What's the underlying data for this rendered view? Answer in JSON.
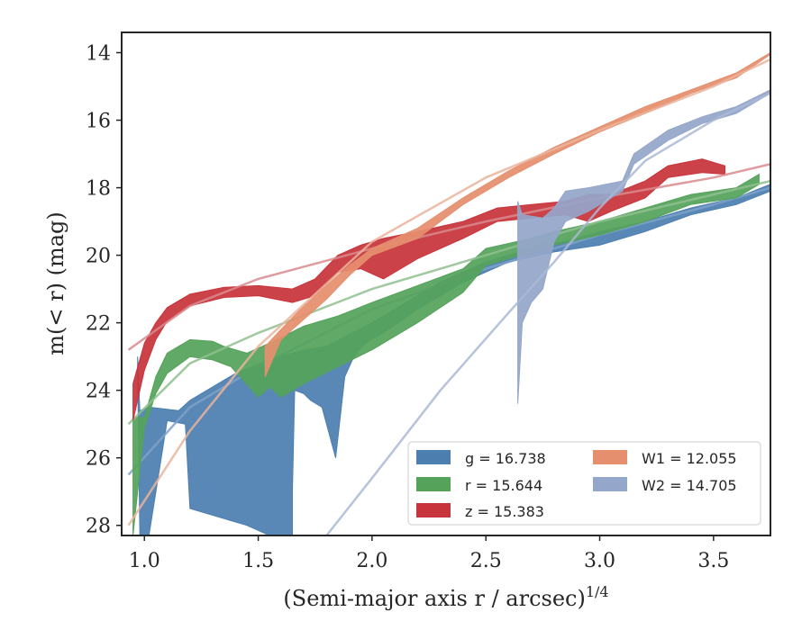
{
  "chart_data": {
    "type": "area",
    "xlabel": "(Semi-major axis r / arcsec)",
    "xlabel_superscript": "1/4",
    "ylabel": "m(< r) (mag)",
    "xlim": [
      0.9,
      3.75
    ],
    "ylim": [
      28.3,
      13.4
    ],
    "y_inverted": true,
    "grid": false,
    "legend_position": "lower-right",
    "legend_columns": 2,
    "x_ticks": [
      1.0,
      1.5,
      2.0,
      2.5,
      3.0,
      3.5
    ],
    "x_tick_labels": [
      "1.0",
      "1.5",
      "2.0",
      "2.5",
      "3.0",
      "3.5"
    ],
    "y_ticks": [
      14,
      16,
      18,
      20,
      22,
      24,
      26,
      28
    ],
    "y_tick_labels": [
      "14",
      "16",
      "18",
      "20",
      "22",
      "24",
      "26",
      "28"
    ],
    "series": [
      {
        "name": "g = 16.738",
        "legend_label": "g = 16.738",
        "color": "#4c7fb0",
        "fit_color": "#7fa2c8",
        "band_upper": [
          [
            0.97,
            23.0
          ],
          [
            0.98,
            24.6
          ],
          [
            1.02,
            24.5
          ],
          [
            1.15,
            24.6
          ],
          [
            1.2,
            24.3
          ],
          [
            1.4,
            23.5
          ],
          [
            1.55,
            23.1
          ],
          [
            1.7,
            22.8
          ],
          [
            1.8,
            22.7
          ],
          [
            2.0,
            22.0
          ],
          [
            2.1,
            21.6
          ],
          [
            2.3,
            20.8
          ],
          [
            2.5,
            20.2
          ],
          [
            2.7,
            19.8
          ],
          [
            2.9,
            19.5
          ],
          [
            3.0,
            19.3
          ],
          [
            3.2,
            19.0
          ],
          [
            3.4,
            18.6
          ],
          [
            3.6,
            18.3
          ],
          [
            3.75,
            17.9
          ]
        ],
        "band_lower": [
          [
            0.97,
            23.5
          ],
          [
            0.98,
            28.3
          ],
          [
            1.02,
            28.3
          ],
          [
            1.1,
            24.9
          ],
          [
            1.18,
            25.0
          ],
          [
            1.2,
            27.5
          ],
          [
            1.45,
            28.0
          ],
          [
            1.55,
            28.3
          ],
          [
            1.65,
            28.3
          ],
          [
            1.65,
            27.0
          ],
          [
            1.66,
            24.0
          ],
          [
            1.7,
            24.1
          ],
          [
            1.73,
            24.3
          ],
          [
            1.78,
            24.5
          ],
          [
            1.8,
            25.0
          ],
          [
            1.84,
            26.0
          ],
          [
            1.88,
            23.6
          ],
          [
            1.92,
            23.0
          ],
          [
            1.97,
            22.6
          ],
          [
            2.05,
            22.3
          ],
          [
            2.2,
            21.6
          ],
          [
            2.4,
            20.8
          ],
          [
            2.6,
            20.2
          ],
          [
            2.8,
            19.9
          ],
          [
            3.0,
            19.7
          ],
          [
            3.2,
            19.3
          ],
          [
            3.4,
            18.8
          ],
          [
            3.6,
            18.5
          ],
          [
            3.75,
            18.1
          ]
        ],
        "fit": [
          [
            0.93,
            26.5
          ],
          [
            1.2,
            24.5
          ],
          [
            1.5,
            23.3
          ],
          [
            2.0,
            21.6
          ],
          [
            2.5,
            20.4
          ],
          [
            3.0,
            19.4
          ],
          [
            3.5,
            18.5
          ],
          [
            3.75,
            18.0
          ]
        ]
      },
      {
        "name": "r = 15.644",
        "legend_label": "r = 15.644",
        "color": "#55a25b",
        "fit_color": "#8fc08f",
        "band_upper": [
          [
            0.95,
            24.8
          ],
          [
            1.0,
            24.8
          ],
          [
            1.05,
            23.6
          ],
          [
            1.1,
            22.9
          ],
          [
            1.2,
            22.5
          ],
          [
            1.3,
            22.55
          ],
          [
            1.35,
            22.7
          ],
          [
            1.45,
            22.9
          ],
          [
            1.55,
            22.6
          ],
          [
            1.7,
            22.1
          ],
          [
            1.85,
            21.8
          ],
          [
            2.0,
            21.4
          ],
          [
            2.2,
            20.9
          ],
          [
            2.4,
            20.4
          ],
          [
            2.5,
            19.8
          ],
          [
            2.7,
            19.5
          ],
          [
            2.8,
            19.3
          ],
          [
            3.0,
            19.0
          ],
          [
            3.2,
            18.6
          ],
          [
            3.4,
            18.2
          ],
          [
            3.6,
            18.0
          ],
          [
            3.7,
            17.6
          ]
        ],
        "band_lower": [
          [
            0.95,
            28.3
          ],
          [
            1.0,
            25.1
          ],
          [
            1.05,
            24.1
          ],
          [
            1.1,
            23.5
          ],
          [
            1.2,
            23.0
          ],
          [
            1.3,
            23.1
          ],
          [
            1.38,
            23.3
          ],
          [
            1.5,
            24.2
          ],
          [
            1.55,
            23.9
          ],
          [
            1.6,
            24.2
          ],
          [
            1.7,
            23.8
          ],
          [
            1.85,
            23.3
          ],
          [
            2.0,
            22.8
          ],
          [
            2.2,
            22.0
          ],
          [
            2.4,
            21.1
          ],
          [
            2.5,
            20.3
          ],
          [
            2.7,
            19.9
          ],
          [
            2.8,
            19.7
          ],
          [
            3.0,
            19.4
          ],
          [
            3.2,
            19.0
          ],
          [
            3.4,
            18.5
          ],
          [
            3.6,
            18.3
          ],
          [
            3.7,
            17.9
          ]
        ],
        "fit": [
          [
            0.93,
            25.0
          ],
          [
            1.2,
            23.2
          ],
          [
            1.5,
            22.3
          ],
          [
            2.0,
            21.0
          ],
          [
            2.5,
            20.0
          ],
          [
            3.0,
            19.0
          ],
          [
            3.5,
            18.2
          ],
          [
            3.75,
            17.8
          ]
        ]
      },
      {
        "name": "z = 15.383",
        "legend_label": "z = 15.383",
        "color": "#c8343b",
        "fit_color": "#d98a8d",
        "band_upper": [
          [
            0.95,
            23.8
          ],
          [
            1.0,
            22.6
          ],
          [
            1.05,
            22.0
          ],
          [
            1.1,
            21.55
          ],
          [
            1.2,
            21.15
          ],
          [
            1.35,
            20.95
          ],
          [
            1.5,
            20.9
          ],
          [
            1.65,
            21.0
          ],
          [
            1.75,
            20.7
          ],
          [
            1.85,
            20.0
          ],
          [
            1.95,
            19.7
          ],
          [
            2.05,
            19.5
          ],
          [
            2.2,
            19.3
          ],
          [
            2.4,
            19.0
          ],
          [
            2.55,
            18.6
          ],
          [
            2.7,
            18.5
          ],
          [
            2.85,
            18.4
          ],
          [
            2.95,
            18.2
          ],
          [
            3.05,
            18.2
          ],
          [
            3.2,
            17.8
          ],
          [
            3.3,
            17.35
          ],
          [
            3.45,
            17.15
          ],
          [
            3.55,
            17.35
          ]
        ],
        "band_lower": [
          [
            0.95,
            24.9
          ],
          [
            1.0,
            23.4
          ],
          [
            1.05,
            22.5
          ],
          [
            1.1,
            21.95
          ],
          [
            1.2,
            21.5
          ],
          [
            1.35,
            21.25
          ],
          [
            1.5,
            21.2
          ],
          [
            1.65,
            21.4
          ],
          [
            1.75,
            21.2
          ],
          [
            1.85,
            20.5
          ],
          [
            1.95,
            20.4
          ],
          [
            2.05,
            20.7
          ],
          [
            2.2,
            20.1
          ],
          [
            2.4,
            19.5
          ],
          [
            2.55,
            19.0
          ],
          [
            2.7,
            18.9
          ],
          [
            2.85,
            18.8
          ],
          [
            2.95,
            19.0
          ],
          [
            3.05,
            18.7
          ],
          [
            3.2,
            18.3
          ],
          [
            3.3,
            17.7
          ],
          [
            3.45,
            17.55
          ],
          [
            3.55,
            17.6
          ]
        ],
        "fit": [
          [
            0.93,
            22.8
          ],
          [
            1.2,
            21.5
          ],
          [
            1.5,
            20.7
          ],
          [
            2.0,
            19.8
          ],
          [
            2.5,
            19.0
          ],
          [
            3.0,
            18.3
          ],
          [
            3.5,
            17.7
          ],
          [
            3.75,
            17.3
          ]
        ]
      },
      {
        "name": "W1 = 12.055",
        "legend_label": "W1 = 12.055",
        "color": "#e58f6e",
        "fit_color": "#eab49b",
        "band_upper": [
          [
            1.53,
            22.7
          ],
          [
            1.6,
            22.2
          ],
          [
            1.7,
            21.5
          ],
          [
            1.8,
            20.9
          ],
          [
            1.9,
            20.3
          ],
          [
            2.0,
            19.8
          ],
          [
            2.2,
            19.2
          ],
          [
            2.4,
            18.3
          ],
          [
            2.6,
            17.5
          ],
          [
            2.8,
            16.8
          ],
          [
            3.0,
            16.2
          ],
          [
            3.2,
            15.6
          ],
          [
            3.4,
            15.1
          ],
          [
            3.6,
            14.6
          ],
          [
            3.75,
            14.0
          ]
        ],
        "band_lower": [
          [
            1.53,
            23.6
          ],
          [
            1.6,
            22.5
          ],
          [
            1.7,
            21.9
          ],
          [
            1.8,
            21.3
          ],
          [
            1.9,
            20.6
          ],
          [
            2.0,
            20.0
          ],
          [
            2.2,
            19.5
          ],
          [
            2.4,
            18.5
          ],
          [
            2.6,
            17.7
          ],
          [
            2.8,
            17.0
          ],
          [
            3.0,
            16.35
          ],
          [
            3.2,
            15.8
          ],
          [
            3.4,
            15.2
          ],
          [
            3.6,
            14.75
          ],
          [
            3.75,
            14.05
          ]
        ],
        "fit": [
          [
            0.93,
            28.0
          ],
          [
            1.2,
            25.2
          ],
          [
            1.5,
            22.7
          ],
          [
            2.0,
            19.6
          ],
          [
            2.5,
            17.7
          ],
          [
            3.0,
            16.3
          ],
          [
            3.5,
            15.0
          ],
          [
            3.75,
            14.2
          ]
        ]
      },
      {
        "name": "W2 = 14.705",
        "legend_label": "W2 = 14.705",
        "color": "#94a6c9",
        "fit_color": "#a9b8d5",
        "band_upper": [
          [
            2.64,
            18.4
          ],
          [
            2.66,
            18.8
          ],
          [
            2.75,
            18.9
          ],
          [
            2.8,
            18.6
          ],
          [
            2.85,
            18.1
          ],
          [
            2.95,
            18.0
          ],
          [
            3.1,
            17.8
          ],
          [
            3.15,
            17.0
          ],
          [
            3.3,
            16.3
          ],
          [
            3.45,
            15.9
          ],
          [
            3.6,
            15.6
          ],
          [
            3.75,
            15.1
          ]
        ],
        "band_lower": [
          [
            2.64,
            24.4
          ],
          [
            2.66,
            22.0
          ],
          [
            2.7,
            21.4
          ],
          [
            2.75,
            21.0
          ],
          [
            2.8,
            19.6
          ],
          [
            2.85,
            19.0
          ],
          [
            2.95,
            18.7
          ],
          [
            3.1,
            18.1
          ],
          [
            3.15,
            17.3
          ],
          [
            3.3,
            16.6
          ],
          [
            3.45,
            16.1
          ],
          [
            3.6,
            15.8
          ],
          [
            3.75,
            15.2
          ]
        ],
        "fit": [
          [
            1.8,
            28.3
          ],
          [
            2.0,
            26.6
          ],
          [
            2.3,
            24.0
          ],
          [
            2.6,
            21.7
          ],
          [
            2.8,
            20.2
          ],
          [
            3.0,
            18.6
          ],
          [
            3.2,
            17.2
          ],
          [
            3.5,
            16.0
          ],
          [
            3.75,
            15.2
          ]
        ]
      }
    ]
  }
}
